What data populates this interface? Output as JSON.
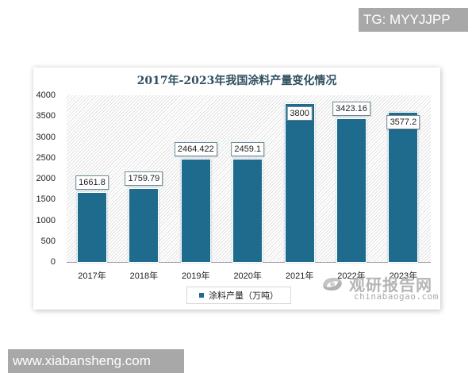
{
  "badges": {
    "tg": "TG: MYYJJPP",
    "site": "www.xiabansheng.com"
  },
  "chart": {
    "title": "2017年-2023年我国涂料产量变化情况",
    "legend": "涂料产量（万吨）",
    "y_ticks": [
      "4000",
      "3500",
      "3000",
      "2500",
      "2000",
      "1500",
      "1000",
      "500",
      "0"
    ],
    "bars": [
      {
        "year": "2017年",
        "value": 1661.8,
        "label": "1661.8"
      },
      {
        "year": "2018年",
        "value": 1759.79,
        "label": "1759.79"
      },
      {
        "year": "2019年",
        "value": 2464.422,
        "label": "2464.422"
      },
      {
        "year": "2020年",
        "value": 2459.1,
        "label": "2459.1"
      },
      {
        "year": "2021年",
        "value": 3800,
        "label": "3800"
      },
      {
        "year": "2022年",
        "value": 3423.16,
        "label": "3423.16"
      },
      {
        "year": "2023年",
        "value": 3577.2,
        "label": "3577.2"
      }
    ],
    "bar_color": "#1f6b8e"
  },
  "watermark": {
    "cn": "观研报告网",
    "en": "chinabaogao.com"
  },
  "chart_data": {
    "type": "bar",
    "title": "2017年-2023年我国涂料产量变化情况",
    "categories": [
      "2017年",
      "2018年",
      "2019年",
      "2020年",
      "2021年",
      "2022年",
      "2023年"
    ],
    "series": [
      {
        "name": "涂料产量（万吨）",
        "values": [
          1661.8,
          1759.79,
          2464.422,
          2459.1,
          3800,
          3423.16,
          3577.2
        ]
      }
    ],
    "xlabel": "",
    "ylabel": "",
    "ylim": [
      0,
      4000
    ],
    "y_tick_step": 500,
    "grid": false,
    "legend_position": "bottom",
    "data_labels": true
  }
}
